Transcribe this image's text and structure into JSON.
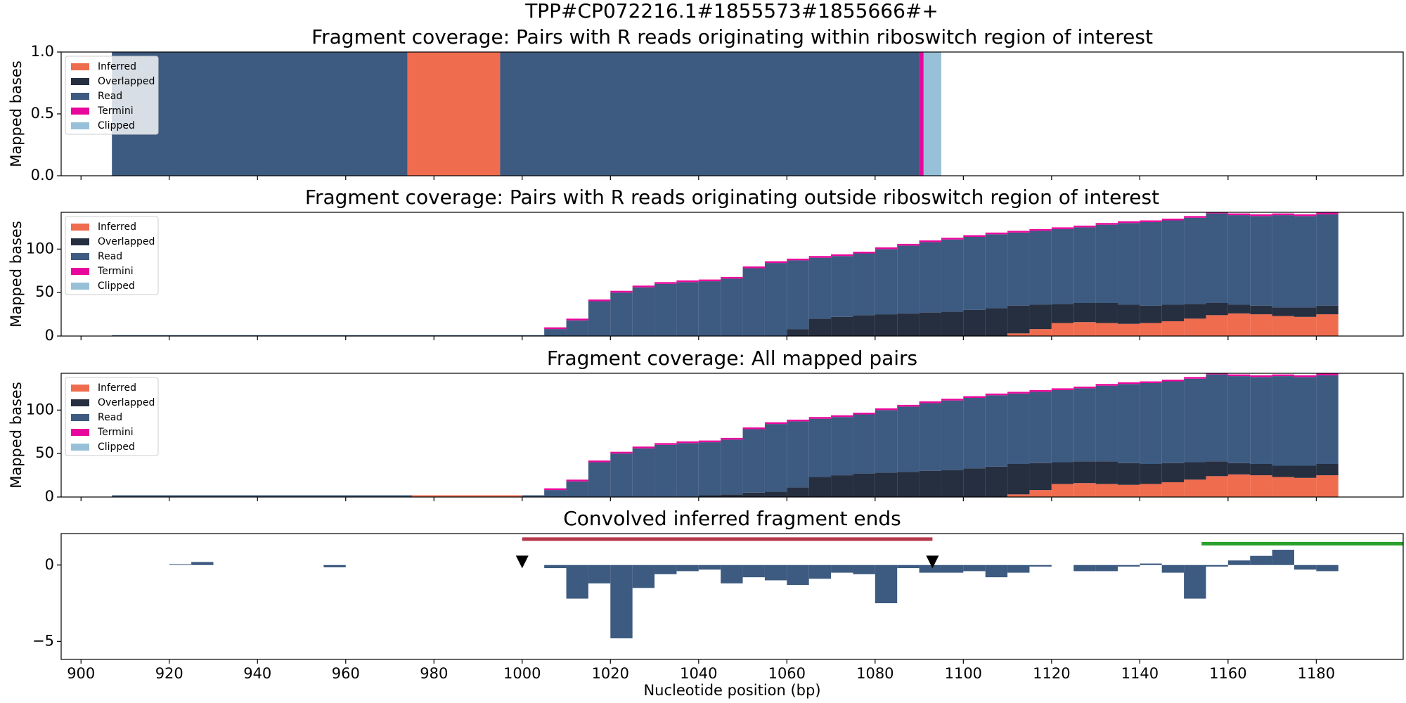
{
  "title": "TPP#CP072216.1#1855573#1855666#+",
  "chart_data": [
    {
      "type": "histogram",
      "title": "Fragment coverage: Pairs with R reads originating within riboswitch region of interest",
      "ylabel": "Mapped bases",
      "xlim": [
        895.5,
        1199.7
      ],
      "ylim": [
        0,
        1
      ],
      "yticks": [
        {
          "value": 0,
          "label": "0.0"
        },
        0.5,
        {
          "value": 1,
          "label": "1.0"
        }
      ],
      "legend": "upper left",
      "bins": [
        907,
        974,
        995,
        1090,
        1091,
        1095
      ],
      "series": [
        {
          "name": "Inferred",
          "color": "#ef6c4f",
          "values": [
            0,
            1,
            0,
            0,
            0
          ]
        },
        {
          "name": "Overlapped",
          "color": "#262f40",
          "values": [
            0,
            0,
            0,
            0,
            0
          ]
        },
        {
          "name": "Read",
          "color": "#3d5a80",
          "values": [
            1,
            0,
            1,
            0,
            0
          ]
        },
        {
          "name": "Termini",
          "color": "#e8079c",
          "values": [
            0,
            0,
            0,
            1,
            0
          ]
        },
        {
          "name": "Clipped",
          "color": "#98c1d9",
          "values": [
            0,
            0,
            0,
            0,
            1
          ]
        }
      ]
    },
    {
      "type": "histogram",
      "title": "Fragment coverage: Pairs with R reads originating outside riboswitch region of interest",
      "ylabel": "Mapped bases",
      "xlim": [
        895.5,
        1199.7
      ],
      "ylim": [
        0,
        142.3
      ],
      "yticks": [
        0,
        50,
        100
      ],
      "legend": "upper left",
      "bins": [
        907,
        975,
        1000,
        1005,
        1010,
        1015,
        1020,
        1025,
        1030,
        1035,
        1040,
        1045,
        1050,
        1055,
        1060,
        1065,
        1070,
        1075,
        1080,
        1085,
        1090,
        1095,
        1100,
        1105,
        1110,
        1115,
        1120,
        1125,
        1130,
        1135,
        1140,
        1145,
        1150,
        1155,
        1160,
        1165,
        1170,
        1175,
        1180,
        1185
      ],
      "series": [
        {
          "name": "Inferred",
          "color": "#ef6c4f",
          "values": [
            0,
            0,
            0,
            0,
            0,
            0,
            0,
            0,
            0,
            0,
            0,
            0,
            0,
            0,
            0,
            0,
            0,
            0,
            0,
            0,
            0,
            0,
            0,
            0,
            3,
            8,
            15,
            16,
            15,
            14,
            15,
            17,
            20,
            24,
            26,
            25,
            23,
            22,
            25
          ]
        },
        {
          "name": "Overlapped",
          "color": "#262f40",
          "values": [
            0,
            0,
            0,
            0,
            0,
            0,
            0,
            0,
            0,
            0,
            0,
            0,
            0,
            0,
            8,
            20,
            22,
            24,
            25,
            26,
            27,
            28,
            30,
            32,
            32,
            28,
            22,
            22,
            23,
            22,
            20,
            19,
            17,
            14,
            10,
            10,
            10,
            11,
            10
          ]
        },
        {
          "name": "Read",
          "color": "#3d5a80",
          "values": [
            1,
            1,
            1,
            8,
            18,
            40,
            50,
            56,
            60,
            62,
            63,
            66,
            78,
            84,
            79,
            70,
            70,
            71,
            75,
            78,
            81,
            83,
            84,
            85,
            84,
            85,
            86,
            87,
            90,
            94,
            96,
            97,
            99,
            103,
            103,
            103,
            106,
            105,
            105
          ]
        },
        {
          "name": "Termini",
          "color": "#e8079c",
          "values": [
            0,
            0,
            0,
            2,
            2,
            2,
            2,
            2,
            2,
            2,
            2,
            2,
            2,
            2,
            2,
            2,
            2,
            2,
            2,
            2,
            2,
            2,
            2,
            2,
            2,
            2,
            2,
            2,
            2,
            2,
            2,
            2,
            2,
            2,
            2,
            2,
            2,
            2,
            2
          ]
        },
        {
          "name": "Clipped",
          "color": "#98c1d9",
          "values": [
            0,
            0,
            0,
            0,
            0,
            0,
            0,
            0,
            0,
            0,
            0,
            0,
            0,
            0,
            0,
            0,
            0,
            0,
            0,
            0,
            0,
            0,
            0,
            0,
            0,
            0,
            0,
            0,
            0,
            0,
            0,
            0,
            0,
            0,
            0,
            0,
            0,
            0,
            0
          ]
        }
      ]
    },
    {
      "type": "histogram",
      "title": "Fragment coverage: All mapped pairs",
      "ylabel": "Mapped bases",
      "xlim": [
        895.5,
        1199.7
      ],
      "ylim": [
        0,
        142.3
      ],
      "yticks": [
        0,
        50,
        100
      ],
      "legend": "upper left",
      "bins": [
        907,
        975,
        1000,
        1005,
        1010,
        1015,
        1020,
        1025,
        1030,
        1035,
        1040,
        1045,
        1050,
        1055,
        1060,
        1065,
        1070,
        1075,
        1080,
        1085,
        1090,
        1095,
        1100,
        1105,
        1110,
        1115,
        1120,
        1125,
        1130,
        1135,
        1140,
        1145,
        1150,
        1155,
        1160,
        1165,
        1170,
        1175,
        1180,
        1185
      ],
      "series": [
        {
          "name": "Inferred",
          "color": "#ef6c4f",
          "values": [
            0,
            2,
            0,
            0,
            0,
            0,
            0,
            0,
            0,
            0,
            0,
            0,
            0,
            0,
            0,
            0,
            0,
            0,
            0,
            0,
            0,
            0,
            0,
            0,
            3,
            8,
            15,
            16,
            15,
            14,
            15,
            17,
            20,
            24,
            26,
            25,
            23,
            22,
            25
          ]
        },
        {
          "name": "Overlapped",
          "color": "#262f40",
          "values": [
            0,
            0,
            0,
            0,
            0,
            0,
            0,
            0,
            0,
            0,
            2,
            3,
            5,
            6,
            11,
            23,
            25,
            27,
            28,
            29,
            30,
            31,
            33,
            35,
            35,
            31,
            25,
            25,
            26,
            25,
            23,
            22,
            20,
            17,
            13,
            13,
            13,
            14,
            13
          ]
        },
        {
          "name": "Read",
          "color": "#3d5a80",
          "values": [
            2,
            0,
            2,
            8,
            18,
            40,
            50,
            56,
            60,
            62,
            61,
            63,
            73,
            78,
            76,
            67,
            67,
            68,
            72,
            75,
            78,
            80,
            81,
            82,
            81,
            82,
            83,
            84,
            87,
            91,
            93,
            94,
            96,
            100,
            100,
            100,
            103,
            102,
            102
          ]
        },
        {
          "name": "Termini",
          "color": "#e8079c",
          "values": [
            0,
            0,
            0,
            2,
            2,
            2,
            2,
            2,
            2,
            2,
            2,
            2,
            2,
            2,
            2,
            2,
            2,
            2,
            2,
            2,
            2,
            2,
            2,
            2,
            2,
            2,
            2,
            2,
            2,
            2,
            2,
            2,
            2,
            2,
            2,
            2,
            2,
            2,
            2
          ]
        },
        {
          "name": "Clipped",
          "color": "#98c1d9",
          "values": [
            0,
            0,
            0,
            0,
            0,
            0,
            0,
            0,
            0,
            0,
            0,
            0,
            0,
            0,
            0,
            0,
            0,
            0,
            0,
            0,
            0,
            0,
            0,
            0,
            0,
            0,
            0,
            0,
            0,
            0,
            0,
            0,
            0,
            0,
            0,
            0,
            0,
            0,
            0
          ]
        }
      ]
    },
    {
      "type": "histogram",
      "title": "Convolved inferred fragment ends",
      "xlabel": "Nucleotide position (bp)",
      "xlim": [
        895.5,
        1199.7
      ],
      "xticks": [
        900,
        920,
        940,
        960,
        980,
        1000,
        1020,
        1040,
        1060,
        1080,
        1100,
        1120,
        1140,
        1160,
        1180
      ],
      "ylim": [
        -6.18,
        2.06
      ],
      "yticks": [
        {
          "value": -5,
          "label": "−5"
        },
        0
      ],
      "bins": [
        920,
        925,
        930,
        935,
        940,
        945,
        950,
        955,
        960,
        965,
        970,
        975,
        980,
        985,
        990,
        995,
        1000,
        1005,
        1010,
        1015,
        1020,
        1025,
        1030,
        1035,
        1040,
        1045,
        1050,
        1055,
        1060,
        1065,
        1070,
        1075,
        1080,
        1085,
        1090,
        1095,
        1100,
        1105,
        1110,
        1115,
        1120,
        1125,
        1130,
        1135,
        1140,
        1145,
        1150,
        1155,
        1160,
        1165,
        1170,
        1175,
        1180,
        1185
      ],
      "series": [
        {
          "color": "#3d5a80",
          "values": [
            0.05,
            0.2,
            0,
            0,
            0,
            0,
            0,
            -0.15,
            0,
            0,
            0,
            0,
            0,
            0,
            0,
            0,
            0,
            -0.2,
            -2.2,
            -1.2,
            -4.8,
            -1.5,
            -0.6,
            -0.4,
            -0.3,
            -1.2,
            -0.8,
            -1.0,
            -1.3,
            -0.9,
            -0.5,
            -0.6,
            -2.5,
            -0.2,
            -0.5,
            -0.5,
            -0.4,
            -0.8,
            -0.5,
            -0.1,
            0,
            -0.4,
            -0.4,
            -0.1,
            0.1,
            -0.5,
            -2.2,
            -0.1,
            0.3,
            0.6,
            1.0,
            -0.3,
            -0.4
          ]
        }
      ],
      "spans": [
        {
          "x": [
            1000,
            1093
          ],
          "y": 1.7,
          "color": "#b5394a"
        },
        {
          "x": [
            1154,
            1199.7
          ],
          "y": 1.4,
          "color": "#2ca02c"
        }
      ],
      "markers": {
        "x": [
          1000,
          1093
        ],
        "y": 0.2,
        "color": "#000000"
      }
    }
  ]
}
